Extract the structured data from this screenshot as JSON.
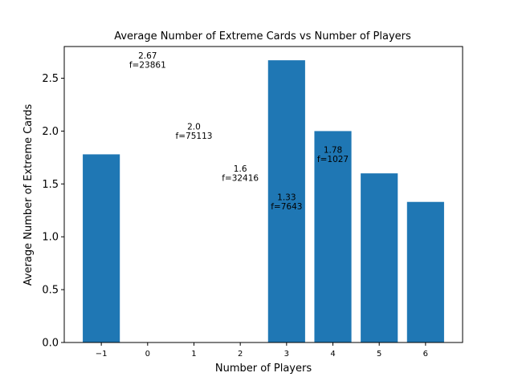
{
  "chart_data": {
    "type": "bar",
    "title": "Average Number of Extreme Cards vs Number of Players",
    "xlabel": "Number of Players",
    "ylabel": "Average Number of Extreme Cards",
    "categories": [
      "−1",
      "0",
      "1",
      "2",
      "3",
      "4",
      "5",
      "6"
    ],
    "x": [
      -1,
      0,
      1,
      2,
      3,
      4,
      5,
      6
    ],
    "values": [
      1.78,
      0,
      0,
      0,
      2.67,
      2.0,
      1.6,
      1.33
    ],
    "bar_color": "#1f77b4",
    "xlim": [
      -1.8,
      6.8
    ],
    "ylim": [
      0,
      2.8
    ],
    "yticks": [
      0.0,
      0.5,
      1.0,
      1.5,
      2.0,
      2.5
    ],
    "ytick_labels": [
      "0.0",
      "0.5",
      "1.0",
      "1.5",
      "2.0",
      "2.5"
    ],
    "grid": false,
    "annotations": [
      {
        "x": 0,
        "y": 2.67,
        "line1": "2.67",
        "line2": "f=23861"
      },
      {
        "x": 1,
        "y": 2.0,
        "line1": "2.0",
        "line2": "f=75113"
      },
      {
        "x": 2,
        "y": 1.6,
        "line1": "1.6",
        "line2": "f=32416"
      },
      {
        "x": 3,
        "y": 1.33,
        "line1": "1.33",
        "line2": "f=7643"
      },
      {
        "x": 4,
        "y": 1.78,
        "line1": "1.78",
        "line2": "f=1027"
      }
    ]
  }
}
